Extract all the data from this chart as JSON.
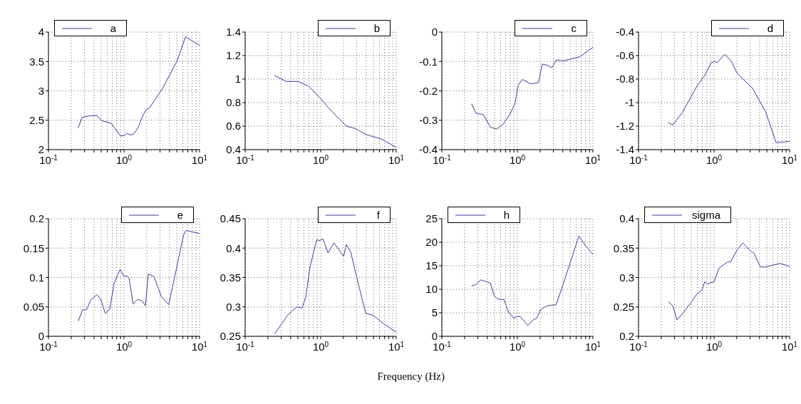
{
  "chart_data": [
    {
      "type": "line",
      "log": "x",
      "grid": true,
      "legend": "top left",
      "xlim": [
        0.1,
        10
      ],
      "ylim": [
        2,
        4
      ],
      "yticks": [
        2,
        2.5,
        3,
        3.5,
        4
      ],
      "xticks": [
        {
          "value": 0.1,
          "label": "10$^{-1}$"
        },
        {
          "value": 0.2,
          "label": null
        },
        {
          "value": 0.3,
          "label": null
        },
        {
          "value": 0.4,
          "label": null
        },
        {
          "value": 0.5,
          "label": null
        },
        {
          "value": 0.6,
          "label": null
        },
        {
          "value": 0.7,
          "label": null
        },
        {
          "value": 0.8,
          "label": null
        },
        {
          "value": 0.9,
          "label": null
        },
        {
          "value": 1,
          "label": "10$^{0}$"
        },
        {
          "value": 2,
          "label": null
        },
        {
          "value": 3,
          "label": null
        },
        {
          "value": 4,
          "label": null
        },
        {
          "value": 5,
          "label": null
        },
        {
          "value": 6,
          "label": null
        },
        {
          "value": 7,
          "label": null
        },
        {
          "value": 8,
          "label": null
        },
        {
          "value": 9,
          "label": null
        },
        {
          "value": 10,
          "label": "10$^{1}$"
        }
      ],
      "x": [
        0.248,
        0.279,
        0.332,
        0.437,
        0.51,
        0.674,
        0.76,
        0.9,
        1.0,
        1.1,
        1.19,
        1.34,
        1.54,
        1.81,
        2.0,
        2.15,
        3.27,
        5.04,
        6.53,
        10
      ],
      "series": [
        {
          "name": "a",
          "color": "#3c3c96",
          "values": [
            2.37,
            2.55,
            2.57,
            2.58,
            2.49,
            2.45,
            2.36,
            2.23,
            2.24,
            2.28,
            2.25,
            2.26,
            2.38,
            2.6,
            2.69,
            2.7,
            3.05,
            3.51,
            3.92,
            3.77
          ]
        }
      ]
    },
    {
      "type": "line",
      "log": "x",
      "grid": true,
      "legend": "top right",
      "xlim": [
        0.1,
        10
      ],
      "ylim": [
        0.4,
        1.4
      ],
      "yticks": [
        0.4,
        0.6,
        0.8,
        1,
        1.2,
        1.4
      ],
      "xticks": [
        {
          "value": 0.1,
          "label": "10$^{-1}$"
        },
        {
          "value": 0.2,
          "label": null
        },
        {
          "value": 0.3,
          "label": null
        },
        {
          "value": 0.4,
          "label": null
        },
        {
          "value": 0.5,
          "label": null
        },
        {
          "value": 0.6,
          "label": null
        },
        {
          "value": 0.7,
          "label": null
        },
        {
          "value": 0.8,
          "label": null
        },
        {
          "value": 0.9,
          "label": null
        },
        {
          "value": 1,
          "label": "10$^{0}$"
        },
        {
          "value": 2,
          "label": null
        },
        {
          "value": 3,
          "label": null
        },
        {
          "value": 4,
          "label": null
        },
        {
          "value": 5,
          "label": null
        },
        {
          "value": 6,
          "label": null
        },
        {
          "value": 7,
          "label": null
        },
        {
          "value": 8,
          "label": null
        },
        {
          "value": 9,
          "label": null
        },
        {
          "value": 10,
          "label": "10$^{1}$"
        }
      ],
      "x": [
        0.245,
        0.35,
        0.5,
        0.69,
        0.98,
        1.25,
        1.65,
        2.18,
        2.86,
        3.94,
        6.35,
        10
      ],
      "series": [
        {
          "name": "b",
          "color": "#3c3c96",
          "values": [
            1.03,
            0.98,
            0.98,
            0.94,
            0.84,
            0.76,
            0.68,
            0.6,
            0.58,
            0.53,
            0.49,
            0.42
          ]
        }
      ]
    },
    {
      "type": "line",
      "log": "x",
      "grid": true,
      "legend": "top right",
      "xlim": [
        0.1,
        10
      ],
      "ylim": [
        -0.4,
        0
      ],
      "yticks": [
        -0.4,
        -0.3,
        -0.2,
        -0.1,
        0
      ],
      "xticks": [
        {
          "value": 0.1,
          "label": "10$^{-1}$"
        },
        {
          "value": 0.2,
          "label": null
        },
        {
          "value": 0.3,
          "label": null
        },
        {
          "value": 0.4,
          "label": null
        },
        {
          "value": 0.5,
          "label": null
        },
        {
          "value": 0.6,
          "label": null
        },
        {
          "value": 0.7,
          "label": null
        },
        {
          "value": 0.8,
          "label": null
        },
        {
          "value": 0.9,
          "label": null
        },
        {
          "value": 1,
          "label": "10$^{0}$"
        },
        {
          "value": 2,
          "label": null
        },
        {
          "value": 3,
          "label": null
        },
        {
          "value": 4,
          "label": null
        },
        {
          "value": 5,
          "label": null
        },
        {
          "value": 6,
          "label": null
        },
        {
          "value": 7,
          "label": null
        },
        {
          "value": 8,
          "label": null
        },
        {
          "value": 9,
          "label": null
        },
        {
          "value": 10,
          "label": "10$^{1}$"
        }
      ],
      "x": [
        0.248,
        0.283,
        0.355,
        0.44,
        0.536,
        0.65,
        0.795,
        0.93,
        1.02,
        1.16,
        1.5,
        1.9,
        2.14,
        2.51,
        2.87,
        3.3,
        4.03,
        6.73,
        10
      ],
      "series": [
        {
          "name": "c",
          "color": "#3c3c96",
          "values": [
            -0.244,
            -0.276,
            -0.281,
            -0.324,
            -0.33,
            -0.313,
            -0.28,
            -0.243,
            -0.183,
            -0.161,
            -0.176,
            -0.172,
            -0.109,
            -0.113,
            -0.121,
            -0.095,
            -0.098,
            -0.084,
            -0.052
          ]
        }
      ]
    },
    {
      "type": "line",
      "log": "x",
      "grid": true,
      "legend": "top right",
      "xlim": [
        0.1,
        10
      ],
      "ylim": [
        -1.4,
        -0.4
      ],
      "yticks": [
        -1.4,
        -1.2,
        -1,
        -0.8,
        -0.6,
        -0.4
      ],
      "xticks": [
        {
          "value": 0.1,
          "label": "10$^{-1}$"
        },
        {
          "value": 0.2,
          "label": null
        },
        {
          "value": 0.3,
          "label": null
        },
        {
          "value": 0.4,
          "label": null
        },
        {
          "value": 0.5,
          "label": null
        },
        {
          "value": 0.6,
          "label": null
        },
        {
          "value": 0.7,
          "label": null
        },
        {
          "value": 0.8,
          "label": null
        },
        {
          "value": 0.9,
          "label": null
        },
        {
          "value": 1,
          "label": "10$^{0}$"
        },
        {
          "value": 2,
          "label": null
        },
        {
          "value": 3,
          "label": null
        },
        {
          "value": 4,
          "label": null
        },
        {
          "value": 5,
          "label": null
        },
        {
          "value": 6,
          "label": null
        },
        {
          "value": 7,
          "label": null
        },
        {
          "value": 8,
          "label": null
        },
        {
          "value": 9,
          "label": null
        },
        {
          "value": 10,
          "label": "10$^{1}$"
        }
      ],
      "x": [
        0.248,
        0.284,
        0.384,
        0.593,
        0.751,
        0.916,
        1.03,
        1.1,
        1.38,
        1.66,
        2.02,
        3.25,
        4.83,
        6.62,
        10
      ],
      "series": [
        {
          "name": "d",
          "color": "#3c3c96",
          "values": [
            -1.17,
            -1.19,
            -1.08,
            -0.86,
            -0.77,
            -0.66,
            -0.65,
            -0.66,
            -0.59,
            -0.64,
            -0.75,
            -0.88,
            -1.08,
            -1.34,
            -1.33
          ]
        }
      ]
    },
    {
      "type": "line",
      "log": "x",
      "grid": true,
      "legend": "top right",
      "xlim": [
        0.1,
        10
      ],
      "ylim": [
        0,
        0.2
      ],
      "yticks": [
        0,
        0.05,
        0.1,
        0.15,
        0.2
      ],
      "xticks": [
        {
          "value": 0.1,
          "label": "10$^{-1}$"
        },
        {
          "value": 0.2,
          "label": null
        },
        {
          "value": 0.3,
          "label": null
        },
        {
          "value": 0.4,
          "label": null
        },
        {
          "value": 0.5,
          "label": null
        },
        {
          "value": 0.6,
          "label": null
        },
        {
          "value": 0.7,
          "label": null
        },
        {
          "value": 0.8,
          "label": null
        },
        {
          "value": 0.9,
          "label": null
        },
        {
          "value": 1,
          "label": "10$^{0}$"
        },
        {
          "value": 2,
          "label": null
        },
        {
          "value": 3,
          "label": null
        },
        {
          "value": 4,
          "label": null
        },
        {
          "value": 5,
          "label": null
        },
        {
          "value": 6,
          "label": null
        },
        {
          "value": 7,
          "label": null
        },
        {
          "value": 8,
          "label": null
        },
        {
          "value": 9,
          "label": null
        },
        {
          "value": 10,
          "label": "10$^{1}$"
        }
      ],
      "x": [
        0.248,
        0.283,
        0.319,
        0.359,
        0.437,
        0.492,
        0.566,
        0.648,
        0.741,
        0.889,
        1.0,
        1.09,
        1.17,
        1.32,
        1.52,
        1.74,
        1.92,
        2.1,
        2.48,
        3.14,
        3.91,
        6.14,
        6.6,
        10
      ],
      "series": [
        {
          "name": "e",
          "color": "#3c3c96",
          "values": [
            0.026,
            0.045,
            0.045,
            0.061,
            0.071,
            0.063,
            0.039,
            0.046,
            0.091,
            0.114,
            0.102,
            0.103,
            0.098,
            0.055,
            0.063,
            0.06,
            0.052,
            0.106,
            0.102,
            0.067,
            0.054,
            0.172,
            0.18,
            0.175
          ]
        }
      ]
    },
    {
      "type": "line",
      "log": "x",
      "grid": true,
      "legend": "top right",
      "xlabel": "Frequency (Hz)",
      "xlim": [
        0.1,
        10
      ],
      "ylim": [
        0.25,
        0.45
      ],
      "yticks": [
        0.25,
        0.3,
        0.35,
        0.4,
        0.45
      ],
      "xticks": [
        {
          "value": 0.1,
          "label": "10$^{-1}$"
        },
        {
          "value": 0.2,
          "label": null
        },
        {
          "value": 0.3,
          "label": null
        },
        {
          "value": 0.4,
          "label": null
        },
        {
          "value": 0.5,
          "label": null
        },
        {
          "value": 0.6,
          "label": null
        },
        {
          "value": 0.7,
          "label": null
        },
        {
          "value": 0.8,
          "label": null
        },
        {
          "value": 0.9,
          "label": null
        },
        {
          "value": 1,
          "label": "10$^{0}$"
        },
        {
          "value": 2,
          "label": null
        },
        {
          "value": 3,
          "label": null
        },
        {
          "value": 4,
          "label": null
        },
        {
          "value": 5,
          "label": null
        },
        {
          "value": 6,
          "label": null
        },
        {
          "value": 7,
          "label": null
        },
        {
          "value": 8,
          "label": null
        },
        {
          "value": 9,
          "label": null
        },
        {
          "value": 10,
          "label": "10$^{1}$"
        }
      ],
      "x": [
        0.245,
        0.311,
        0.365,
        0.482,
        0.565,
        0.636,
        0.717,
        0.807,
        0.887,
        0.98,
        1.07,
        1.25,
        1.5,
        2.01,
        2.18,
        2.49,
        2.99,
        3.95,
        4.93,
        6.89,
        10
      ],
      "series": [
        {
          "name": "f",
          "color": "#3c3c96",
          "values": [
            0.254,
            0.273,
            0.286,
            0.3,
            0.298,
            0.317,
            0.366,
            0.394,
            0.414,
            0.413,
            0.416,
            0.392,
            0.409,
            0.386,
            0.406,
            0.394,
            0.351,
            0.289,
            0.286,
            0.271,
            0.257
          ]
        }
      ]
    },
    {
      "type": "line",
      "log": "x",
      "grid": true,
      "legend": "top left",
      "xlim": [
        0.1,
        10
      ],
      "ylim": [
        0,
        25
      ],
      "yticks": [
        0,
        5,
        10,
        15,
        20,
        25
      ],
      "xticks": [
        {
          "value": 0.1,
          "label": "10$^{-1}$"
        },
        {
          "value": 0.2,
          "label": null
        },
        {
          "value": 0.3,
          "label": null
        },
        {
          "value": 0.4,
          "label": null
        },
        {
          "value": 0.5,
          "label": null
        },
        {
          "value": 0.6,
          "label": null
        },
        {
          "value": 0.7,
          "label": null
        },
        {
          "value": 0.8,
          "label": null
        },
        {
          "value": 0.9,
          "label": null
        },
        {
          "value": 1,
          "label": "10$^{0}$"
        },
        {
          "value": 2,
          "label": null
        },
        {
          "value": 3,
          "label": null
        },
        {
          "value": 4,
          "label": null
        },
        {
          "value": 5,
          "label": null
        },
        {
          "value": 6,
          "label": null
        },
        {
          "value": 7,
          "label": null
        },
        {
          "value": 8,
          "label": null
        },
        {
          "value": 9,
          "label": null
        },
        {
          "value": 10,
          "label": "10$^{1}$"
        }
      ],
      "x": [
        0.248,
        0.283,
        0.327,
        0.39,
        0.44,
        0.494,
        0.557,
        0.668,
        0.764,
        0.895,
        0.99,
        1.09,
        1.38,
        1.62,
        1.79,
        2.06,
        2.51,
        3.25,
        3.87,
        6.52,
        7.88,
        10
      ],
      "series": [
        {
          "name": "h",
          "color": "#3c3c96",
          "values": [
            10.7,
            11,
            12,
            11.6,
            11.3,
            8.6,
            7.9,
            7.8,
            5.1,
            3.9,
            4.2,
            4.2,
            2.3,
            3.5,
            3.8,
            5.8,
            6.5,
            6.7,
            10.2,
            21.3,
            19.4,
            17.4
          ]
        }
      ]
    },
    {
      "type": "line",
      "log": "x",
      "grid": true,
      "legend": "top left",
      "xlim": [
        0.1,
        10
      ],
      "ylim": [
        0.2,
        0.4
      ],
      "yticks": [
        0.2,
        0.25,
        0.3,
        0.35,
        0.4
      ],
      "xticks": [
        {
          "value": 0.1,
          "label": "10$^{-1}$"
        },
        {
          "value": 0.2,
          "label": null
        },
        {
          "value": 0.3,
          "label": null
        },
        {
          "value": 0.4,
          "label": null
        },
        {
          "value": 0.5,
          "label": null
        },
        {
          "value": 0.6,
          "label": null
        },
        {
          "value": 0.7,
          "label": null
        },
        {
          "value": 0.8,
          "label": null
        },
        {
          "value": 0.9,
          "label": null
        },
        {
          "value": 1,
          "label": "10$^{0}$"
        },
        {
          "value": 2,
          "label": null
        },
        {
          "value": 3,
          "label": null
        },
        {
          "value": 4,
          "label": null
        },
        {
          "value": 5,
          "label": null
        },
        {
          "value": 6,
          "label": null
        },
        {
          "value": 7,
          "label": null
        },
        {
          "value": 8,
          "label": null
        },
        {
          "value": 9,
          "label": null
        },
        {
          "value": 10,
          "label": "10$^{1}$"
        }
      ],
      "x": [
        0.248,
        0.284,
        0.323,
        0.384,
        0.486,
        0.593,
        0.695,
        0.751,
        0.81,
        0.881,
        0.996,
        1.16,
        1.53,
        1.65,
        2.02,
        2.4,
        3.0,
        3.37,
        4.12,
        4.83,
        7.46,
        10
      ],
      "series": [
        {
          "name": "sigma",
          "color": "#3c3c96",
          "values": [
            0.259,
            0.252,
            0.228,
            0.239,
            0.256,
            0.272,
            0.279,
            0.293,
            0.289,
            0.291,
            0.292,
            0.316,
            0.327,
            0.326,
            0.347,
            0.359,
            0.346,
            0.341,
            0.318,
            0.318,
            0.324,
            0.319
          ]
        }
      ]
    }
  ]
}
